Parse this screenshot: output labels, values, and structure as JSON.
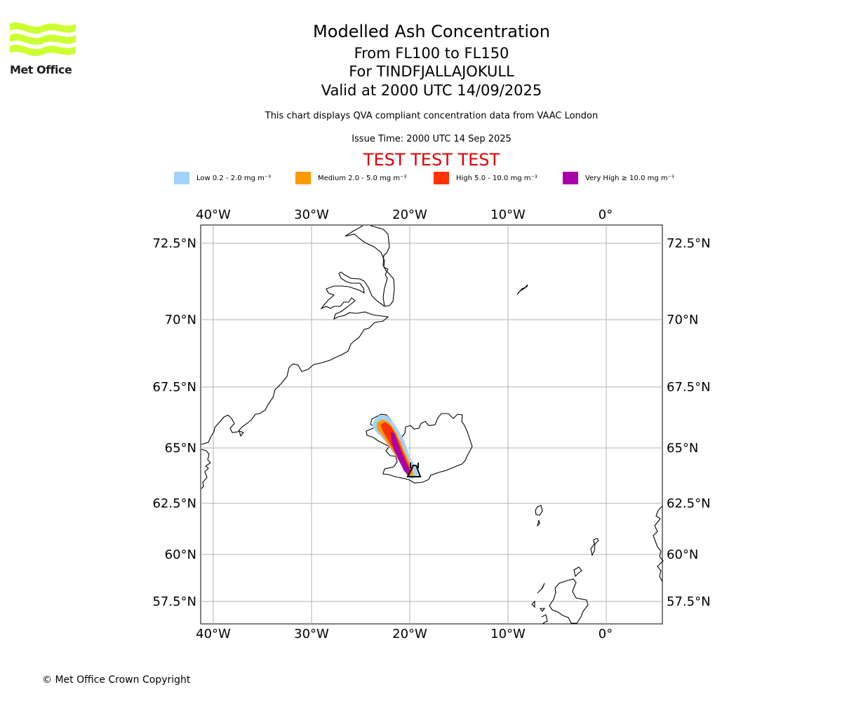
{
  "logo": {
    "text": "Met Office",
    "color": "#ccff33"
  },
  "header": {
    "title": "Modelled Ash Concentration",
    "levels": "From FL100 to FL150",
    "volcano": "For TINDFJALLAJOKULL",
    "valid": "Valid at 2000 UTC 14/09/2025",
    "compliance": "This chart displays QVA compliant concentration data from VAAC London",
    "issue_time": "Issue Time: 2000 UTC 14 Sep 2025",
    "test_banner": "TEST TEST TEST",
    "test_color": "#e00000"
  },
  "legend": [
    {
      "label": "Low 0.2 - 2.0 mg m⁻³",
      "color": "#a0d2fa"
    },
    {
      "label": "Medium 2.0 - 5.0 mg m⁻³",
      "color": "#ff9900"
    },
    {
      "label": "High 5.0 - 10.0 mg m⁻³",
      "color": "#ff3300"
    },
    {
      "label": "Very High ≥ 10.0 mg m⁻³",
      "color": "#aa00aa"
    }
  ],
  "map": {
    "projection": "stereographic-style latitude spacing",
    "lon_labels": [
      "40°W",
      "30°W",
      "20°W",
      "10°W",
      "0°"
    ],
    "lat_labels": [
      "72.5°N",
      "70°N",
      "67.5°N",
      "65°N",
      "62.5°N",
      "60°N",
      "57.5°N"
    ],
    "gridlines": true,
    "volcano_marker": "TINDFJALLAJOKULL",
    "ash_plume_levels": [
      "Low",
      "Medium",
      "High",
      "Very High"
    ]
  },
  "footer": {
    "copyright": "© Met Office Crown Copyright"
  }
}
